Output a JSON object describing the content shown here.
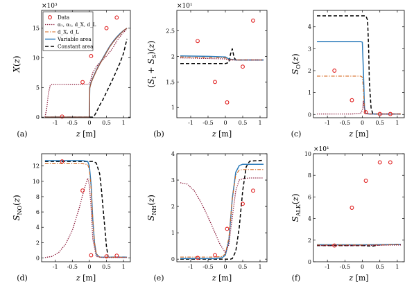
{
  "figure": {
    "legend": {
      "entries": [
        {
          "key": "data",
          "label": "Data"
        },
        {
          "key": "all",
          "label": "α₁, α₂, d_X, d_L"
        },
        {
          "key": "dxdl",
          "label": "d_X, d_L"
        },
        {
          "key": "variable",
          "label": "Variable area"
        },
        {
          "key": "constant",
          "label": "Constant area"
        }
      ]
    }
  },
  "chart_data": [
    {
      "id": "a",
      "type": "line",
      "panel_label": "(a)",
      "ylabel": "X(z)",
      "xlabel": "z  [m]",
      "exponent": "×10³",
      "xlim": [
        -1.4,
        1.2
      ],
      "ylim": [
        -0.1,
        18
      ],
      "xticks": [
        -1,
        -0.5,
        0,
        0.5,
        1
      ],
      "xtick_labels": [
        "-1",
        "-0.5",
        "0",
        "0.5",
        "1"
      ],
      "yticks": [
        0,
        5,
        10,
        15
      ],
      "ytick_labels": [
        "0",
        "5",
        "10",
        "15"
      ],
      "show_legend": true,
      "series": [
        {
          "key": "all",
          "x": [
            -1.3,
            -1.25,
            -1.2,
            -1.15,
            -1.1,
            -0.9,
            -0.5,
            -0.15,
            -0.1,
            0,
            0.05,
            0.1,
            0.2,
            0.3,
            0.4,
            0.5,
            0.6,
            0.7,
            0.8,
            0.9,
            1.0,
            1.1
          ],
          "y": [
            0,
            1.5,
            4,
            5.3,
            5.5,
            5.5,
            5.5,
            5.5,
            5.5,
            5.6,
            6.5,
            7.5,
            8.5,
            9.2,
            9.7,
            10.3,
            11,
            11.8,
            12.8,
            13.6,
            14.3,
            14.9
          ]
        },
        {
          "key": "dxdl",
          "x": [
            -1.3,
            -0.5,
            0,
            0.01,
            0.05,
            0.1,
            0.2,
            0.3,
            0.4,
            0.5,
            0.6,
            0.7,
            0.8,
            0.9,
            1.0,
            1.1
          ],
          "y": [
            0,
            0,
            0,
            4.9,
            5.8,
            6.5,
            7.8,
            8.9,
            9.9,
            10.9,
            11.9,
            12.7,
            13.4,
            14.0,
            14.6,
            15.0
          ]
        },
        {
          "key": "variable",
          "x": [
            -1.3,
            -0.5,
            0,
            0.01,
            0.05,
            0.1,
            0.2,
            0.3,
            0.4,
            0.5,
            0.6,
            0.7,
            0.8,
            0.9,
            1.0,
            1.1
          ],
          "y": [
            0,
            0,
            0,
            5.0,
            5.9,
            6.6,
            7.9,
            9.0,
            10.0,
            11.0,
            12.0,
            12.8,
            13.5,
            14.1,
            14.6,
            15.0
          ]
        },
        {
          "key": "constant",
          "x": [
            -1.3,
            0,
            0.1,
            0.15,
            0.2,
            0.3,
            0.4,
            0.5,
            0.6,
            0.7,
            0.8,
            0.9,
            1.0,
            1.1
          ],
          "y": [
            0,
            0,
            0,
            0.3,
            0.8,
            2,
            3,
            4.2,
            5.4,
            6.6,
            7.9,
            9.2,
            10.8,
            13.2
          ]
        }
      ],
      "data_points": {
        "x": [
          -0.8,
          -0.2,
          0.05,
          0.5,
          0.8
        ],
        "y": [
          0.1,
          5.9,
          10.3,
          15.0,
          16.8
        ]
      }
    },
    {
      "id": "b",
      "type": "line",
      "panel_label": "(b)",
      "ylabel": "(S_I + S_S)(z)",
      "xlabel": "z  [m]",
      "exponent": "×10¹",
      "xlim": [
        -1.4,
        1.2
      ],
      "ylim": [
        0.8,
        2.9
      ],
      "xticks": [
        -1,
        -0.5,
        0,
        0.5,
        1
      ],
      "xtick_labels": [
        "-1",
        "-0.5",
        "0",
        "0.5",
        "1"
      ],
      "yticks": [
        1,
        1.5,
        2,
        2.5
      ],
      "ytick_labels": [
        "1",
        "1.5",
        "2",
        "2.5"
      ],
      "show_legend": false,
      "series": [
        {
          "key": "all",
          "x": [
            -1.3,
            -0.5,
            0,
            0.1,
            0.3,
            0.6,
            1.1
          ],
          "y": [
            1.97,
            1.96,
            1.95,
            1.93,
            1.93,
            1.93,
            1.93
          ]
        },
        {
          "key": "dxdl",
          "x": [
            -1.3,
            -0.5,
            0,
            0.1,
            0.3,
            0.6,
            1.1
          ],
          "y": [
            1.99,
            1.98,
            1.97,
            1.94,
            1.93,
            1.93,
            1.93
          ]
        },
        {
          "key": "variable",
          "x": [
            -1.3,
            -0.5,
            0,
            0.1,
            0.3,
            0.6,
            1.1
          ],
          "y": [
            2.01,
            2.0,
            1.99,
            1.95,
            1.93,
            1.93,
            1.93
          ]
        },
        {
          "key": "constant",
          "x": [
            -1.3,
            -0.5,
            0,
            0.1,
            0.15,
            0.2,
            0.25,
            0.3,
            1.1
          ],
          "y": [
            1.86,
            1.86,
            1.86,
            1.88,
            2.05,
            2.15,
            1.98,
            1.93,
            1.93
          ]
        }
      ],
      "data_points": {
        "x": [
          -0.8,
          -0.3,
          0.05,
          0.5,
          0.8
        ],
        "y": [
          2.3,
          1.5,
          1.1,
          1.8,
          2.7
        ]
      }
    },
    {
      "id": "c",
      "type": "line",
      "panel_label": "(c)",
      "ylabel": "S_O(z)",
      "xlabel": "z  [m]",
      "xlim": [
        -1.4,
        1.2
      ],
      "ylim": [
        -0.15,
        4.75
      ],
      "xticks": [
        -1,
        -0.5,
        0,
        0.5,
        1
      ],
      "xtick_labels": [
        "-1",
        "-0.5",
        "0",
        "0.5",
        "1"
      ],
      "yticks": [
        0,
        1,
        2,
        3,
        4
      ],
      "ytick_labels": [
        "0",
        "1",
        "2",
        "3",
        "4"
      ],
      "show_legend": false,
      "series": [
        {
          "key": "all",
          "x": [
            -1.3,
            -0.3,
            -0.05,
            0,
            0.03,
            0.05,
            0.1,
            0.2,
            1.1
          ],
          "y": [
            0.02,
            0.02,
            0.05,
            0.2,
            0.6,
            0.3,
            0.03,
            0.02,
            0.02
          ]
        },
        {
          "key": "dxdl",
          "x": [
            -1.3,
            -0.05,
            0,
            0.03,
            0.06,
            0.1,
            0.2,
            1.1
          ],
          "y": [
            1.75,
            1.75,
            1.7,
            1.2,
            0.2,
            0.05,
            0.02,
            0.02
          ]
        },
        {
          "key": "variable",
          "x": [
            -1.3,
            -0.05,
            0,
            0.03,
            0.06,
            0.1,
            0.2,
            1.1
          ],
          "y": [
            3.33,
            3.33,
            3.3,
            2,
            0.3,
            0.05,
            0.02,
            0.02
          ]
        },
        {
          "key": "constant",
          "x": [
            -1.3,
            0,
            0.1,
            0.15,
            0.18,
            0.2,
            0.25,
            0.3,
            1.1
          ],
          "y": [
            4.5,
            4.5,
            4.5,
            4.3,
            3,
            1.5,
            0.3,
            0.02,
            0.02
          ]
        }
      ],
      "data_points": {
        "x": [
          -0.8,
          -0.3,
          0.1,
          0.5,
          0.8
        ],
        "y": [
          2.0,
          0.65,
          0.1,
          0.02,
          0.02
        ]
      }
    },
    {
      "id": "d",
      "type": "line",
      "panel_label": "(d)",
      "ylabel": "S_NO(z)",
      "xlabel": "z  [m]",
      "xlim": [
        -1.4,
        1.2
      ],
      "ylim": [
        -0.5,
        13.6
      ],
      "xticks": [
        -1,
        -0.5,
        0,
        0.5,
        1
      ],
      "xtick_labels": [
        "-1",
        "-0.5",
        "0",
        "0.5",
        "1"
      ],
      "yticks": [
        0,
        2,
        4,
        6,
        8,
        10,
        12
      ],
      "ytick_labels": [
        "0",
        "2",
        "4",
        "6",
        "8",
        "10",
        "12"
      ],
      "show_legend": false,
      "series": [
        {
          "key": "all",
          "x": [
            -1.3,
            -1.1,
            -0.9,
            -0.7,
            -0.5,
            -0.3,
            -0.15,
            -0.05,
            0,
            0.05,
            0.1,
            0.2,
            0.4,
            1.1
          ],
          "y": [
            0.05,
            0.2,
            0.7,
            1.8,
            3.6,
            6.5,
            9,
            10.4,
            9.5,
            6.5,
            2.5,
            0.2,
            0.05,
            0.05
          ]
        },
        {
          "key": "dxdl",
          "x": [
            -1.3,
            -0.2,
            -0.05,
            0,
            0.05,
            0.1,
            0.15,
            0.2,
            0.3,
            1.1
          ],
          "y": [
            12.3,
            12.3,
            12.2,
            11.5,
            9,
            5,
            2,
            0.6,
            0.1,
            0.1
          ]
        },
        {
          "key": "variable",
          "x": [
            -1.3,
            -0.2,
            -0.05,
            0,
            0.05,
            0.1,
            0.15,
            0.2,
            0.3,
            1.1
          ],
          "y": [
            12.7,
            12.7,
            12.6,
            12,
            9.5,
            5,
            2,
            0.5,
            0.1,
            0.1
          ]
        },
        {
          "key": "constant",
          "x": [
            -1.3,
            0,
            0.1,
            0.2,
            0.3,
            0.35,
            0.4,
            0.45,
            0.5,
            0.55,
            1.1
          ],
          "y": [
            12.6,
            12.6,
            12.6,
            12.4,
            11,
            9,
            6.5,
            4,
            1.5,
            0.1,
            0.1
          ]
        }
      ],
      "data_points": {
        "x": [
          -0.8,
          -0.2,
          0.05,
          0.5,
          0.8
        ],
        "y": [
          12.6,
          8.8,
          0.35,
          0.2,
          0.3
        ]
      }
    },
    {
      "id": "e",
      "type": "line",
      "panel_label": "(e)",
      "ylabel": "S_NH(z)",
      "xlabel": "z  [m]",
      "xlim": [
        -1.4,
        1.2
      ],
      "ylim": [
        -0.1,
        4.0
      ],
      "xticks": [
        -1,
        -0.5,
        0,
        0.5,
        1
      ],
      "xtick_labels": [
        "-1",
        "-0.5",
        "0",
        "0.5",
        "1"
      ],
      "yticks": [
        0,
        1,
        2,
        3,
        4
      ],
      "ytick_labels": [
        "0",
        "1",
        "2",
        "3",
        "4"
      ],
      "show_legend": false,
      "series": [
        {
          "key": "all",
          "x": [
            -1.3,
            -1.1,
            -0.9,
            -0.7,
            -0.5,
            -0.3,
            -0.15,
            0,
            0.1,
            0.2,
            0.3,
            0.4,
            0.5,
            0.7,
            1.1
          ],
          "y": [
            2.9,
            2.85,
            2.6,
            2.15,
            1.6,
            1.0,
            0.55,
            0.25,
            0.55,
            1.6,
            2.6,
            3.0,
            3.05,
            3.08,
            3.08
          ]
        },
        {
          "key": "dxdl",
          "x": [
            -1.3,
            -0.3,
            -0.1,
            0,
            0.1,
            0.2,
            0.3,
            0.4,
            0.5,
            1.1
          ],
          "y": [
            0.08,
            0.08,
            0.1,
            0.2,
            0.8,
            2.3,
            3.2,
            3.38,
            3.4,
            3.4
          ]
        },
        {
          "key": "variable",
          "x": [
            -1.3,
            -0.3,
            -0.1,
            0,
            0.1,
            0.2,
            0.3,
            0.4,
            0.5,
            1.1
          ],
          "y": [
            0.02,
            0.02,
            0.05,
            0.15,
            0.7,
            2.3,
            3.3,
            3.55,
            3.6,
            3.6
          ]
        },
        {
          "key": "constant",
          "x": [
            -1.3,
            0.15,
            0.2,
            0.3,
            0.4,
            0.5,
            0.6,
            0.7,
            1.1
          ],
          "y": [
            0,
            0,
            0.02,
            0.3,
            1.2,
            2.6,
            3.5,
            3.72,
            3.75
          ]
        }
      ],
      "data_points": {
        "x": [
          -0.8,
          -0.3,
          0.05,
          0.5,
          0.8
        ],
        "y": [
          0.05,
          0.15,
          1.15,
          2.1,
          2.6
        ]
      }
    },
    {
      "id": "f",
      "type": "line",
      "panel_label": "(f)",
      "ylabel": "S_ALK(z)",
      "xlabel": "z  [m]",
      "exponent": "×10¹",
      "xlim": [
        -1.4,
        1.2
      ],
      "ylim": [
        0,
        10
      ],
      "xticks": [
        -1,
        -0.5,
        0,
        0.5,
        1
      ],
      "xtick_labels": [
        "-1",
        "-0.5",
        "0",
        "0.5",
        "1"
      ],
      "yticks": [
        0,
        2,
        4,
        6,
        8,
        10
      ],
      "ytick_labels": [
        "0",
        "2",
        "4",
        "6",
        "8",
        "10"
      ],
      "show_legend": false,
      "series": [
        {
          "key": "all",
          "x": [
            -1.3,
            0,
            1.1
          ],
          "y": [
            1.5,
            1.5,
            1.55
          ]
        },
        {
          "key": "dxdl",
          "x": [
            -1.3,
            0,
            1.1
          ],
          "y": [
            1.55,
            1.55,
            1.58
          ]
        },
        {
          "key": "variable",
          "x": [
            -1.3,
            0,
            1.1
          ],
          "y": [
            1.58,
            1.57,
            1.6
          ]
        },
        {
          "key": "constant",
          "x": [
            -1.3,
            0,
            0.3,
            0.5,
            1.1
          ],
          "y": [
            1.5,
            1.5,
            1.45,
            1.58,
            1.6
          ]
        }
      ],
      "data_points": {
        "x": [
          -0.8,
          -0.3,
          0.1,
          0.5,
          0.8
        ],
        "y": [
          1.5,
          5.0,
          7.5,
          9.2,
          9.2
        ]
      }
    }
  ],
  "styles": {
    "all": {
      "color": "#8b1a3a",
      "dash": "1.4,1.6",
      "width": 1.3
    },
    "dxdl": {
      "color": "#d4651b",
      "dash": "5,2,1.3,2",
      "width": 1.1
    },
    "variable": {
      "color": "#2b7bba",
      "dash": "",
      "width": 1.5
    },
    "constant": {
      "color": "#000000",
      "dash": "5,3",
      "width": 1.5
    },
    "data": {
      "stroke": "#e02020",
      "fill": "none"
    },
    "brown_overlay": "#9c5c48"
  }
}
